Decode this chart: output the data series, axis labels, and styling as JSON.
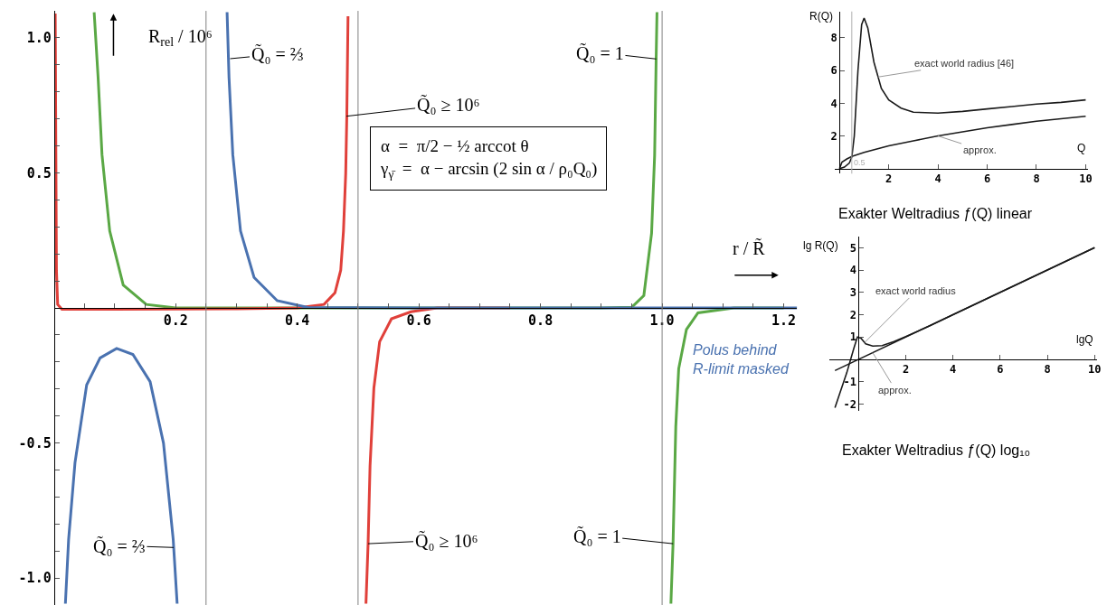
{
  "chart_data": [
    {
      "type": "line",
      "xlabel": "r / R̃",
      "ylabel": "R$_{rel}$ / 10⁶",
      "xlim": [
        0,
        1.222
      ],
      "ylim": [
        -1.1,
        1.1
      ],
      "xticks": [
        {
          "value": 0.05,
          "label": null
        },
        {
          "value": 0.1,
          "label": null
        },
        {
          "value": 0.15,
          "label": null
        },
        0.2,
        {
          "value": 0.25,
          "label": null
        },
        {
          "value": 0.3,
          "label": null
        },
        {
          "value": 0.35,
          "label": null
        },
        0.4,
        {
          "value": 0.45,
          "label": null
        },
        {
          "value": 0.5,
          "label": null
        },
        {
          "value": 0.55,
          "label": null
        },
        0.6,
        {
          "value": 0.65,
          "label": null
        },
        {
          "value": 0.7,
          "label": null
        },
        {
          "value": 0.75,
          "label": null
        },
        0.8,
        {
          "value": 0.85,
          "label": null
        },
        {
          "value": 0.9,
          "label": null
        },
        {
          "value": 0.95,
          "label": null
        },
        {
          "value": 1,
          "label": "1.0"
        },
        {
          "value": 1.05,
          "label": null
        },
        {
          "value": 1.1,
          "label": null
        },
        {
          "value": 1.15,
          "label": null
        },
        1.2
      ],
      "yticks": [
        {
          "value": -1,
          "label": "-1.0"
        },
        {
          "value": -0.9,
          "label": null
        },
        {
          "value": -0.8,
          "label": null
        },
        {
          "value": -0.7,
          "label": null
        },
        {
          "value": -0.6,
          "label": null
        },
        -0.5,
        {
          "value": -0.4,
          "label": null
        },
        {
          "value": -0.3,
          "label": null
        },
        {
          "value": -0.2,
          "label": null
        },
        {
          "value": -0.1,
          "label": null
        },
        {
          "value": 0.1,
          "label": null
        },
        {
          "value": 0.2,
          "label": null
        },
        {
          "value": 0.3,
          "label": null
        },
        {
          "value": 0.4,
          "label": null
        },
        0.5,
        {
          "value": 0.6,
          "label": null
        },
        {
          "value": 0.7,
          "label": null
        },
        {
          "value": 0.8,
          "label": null
        },
        {
          "value": 0.9,
          "label": null
        },
        {
          "value": 1,
          "label": "1.0"
        }
      ],
      "ref_lines": [
        {
          "axis": "x",
          "value": 0.25,
          "color": "#808080"
        },
        {
          "axis": "x",
          "value": 0.5,
          "color": "#808080"
        },
        {
          "axis": "x",
          "value": 1.0,
          "color": "#808080"
        }
      ],
      "series": [
        {
          "color": "#5aa845",
          "x": [
            0.066,
            0.0725,
            0.0789,
            0.0916,
            0.1138,
            0.1517,
            0.2,
            0.5,
            0.9,
            0.9505,
            0.97,
            0.9827,
            0.9877,
            0.9902,
            0.9916,
            1.0,
            1.0145,
            1.018,
            1.0225,
            1.0273,
            1.04,
            1.059,
            1.118,
            1.2
          ],
          "values": [
            1.095,
            0.853,
            0.568,
            0.285,
            0.085,
            0.013,
            0,
            0,
            0,
            0.003,
            0.046,
            0.276,
            0.565,
            0.922,
            1.095,
            null,
            -1.095,
            -0.873,
            -0.44,
            -0.225,
            -0.08,
            -0.018,
            0,
            0
          ]
        },
        {
          "color": "#e0403a",
          "x": [
            0.002,
            0.003,
            0.004,
            0.006,
            0.013,
            0.1,
            0.2,
            0.3,
            0.4,
            0.444,
            0.462,
            0.4715,
            0.476,
            0.4797,
            0.4815,
            0.4835,
            0.5,
            0.513,
            0.5165,
            0.5197,
            0.526,
            0.5355,
            0.555,
            0.587,
            0.63,
            0.75
          ],
          "values": [
            1.09,
            0.6,
            0.14,
            0.013,
            -0.005,
            -0.005,
            -0.004,
            -0.003,
            0,
            0.013,
            0.056,
            0.14,
            0.285,
            0.498,
            0.71,
            1.08,
            null,
            -1.095,
            -0.873,
            -0.585,
            -0.297,
            -0.125,
            -0.04,
            -0.014,
            0,
            0
          ]
        },
        {
          "color": "#4a72b0",
          "x": [
            0.0187,
            0.024,
            0.0345,
            0.0537,
            0.0758,
            0.103,
            0.1297,
            0.158,
            0.18,
            0.196,
            0.2025,
            0.25,
            0.2846,
            0.2878,
            0.294,
            0.3067,
            0.329,
            0.367,
            0.4175,
            0.6,
            0.8,
            1.0,
            1.222
          ],
          "values": [
            -1.095,
            -0.857,
            -0.573,
            -0.285,
            -0.185,
            -0.15,
            -0.172,
            -0.273,
            -0.5,
            -0.857,
            -1.095,
            null,
            1.095,
            0.853,
            0.568,
            0.285,
            0.113,
            0.027,
            0.002,
            0,
            0,
            0,
            0
          ]
        }
      ],
      "annotations": [
        {
          "text": "Q̃₀ = ⅔",
          "x": 0.2897,
          "y": 0.923
        },
        {
          "text": "Q̃₀ ≥ 10⁶",
          "x": 0.481,
          "y": 0.71
        },
        {
          "text": "Q̃₀ = 1",
          "x": 0.9902,
          "y": 0.922
        },
        {
          "text": "Q̃₀ = ⅔",
          "x": 0.1966,
          "y": -0.887
        },
        {
          "text": "Q̃₀ ≥ 10⁶",
          "x": 0.5165,
          "y": -0.873
        },
        {
          "text": "Q̃₀ = 1",
          "x": 1.018,
          "y": -0.873
        },
        "α  =  π/2 − ½ arccot θ\nγ$_{γ̄}$  =  α − arcsin (2 sin α / ρ₀Q₀)",
        "Polus behind\nR-limit masked"
      ]
    },
    {
      "type": "line",
      "title": "Exakter Weltradius ƒ(Q) linear",
      "xlabel": "Q",
      "ylabel": "R(Q)",
      "xlim": [
        -0.2,
        10.1
      ],
      "ylim": [
        -0.3,
        9.6
      ],
      "xticks": [
        2,
        4,
        6,
        8,
        10
      ],
      "yticks": [
        2,
        4,
        6,
        8
      ],
      "ref_lines": [
        {
          "axis": "x",
          "value": 0.5,
          "label": "0.5",
          "color": "#b0b0b0"
        }
      ],
      "series": [
        {
          "color": "#1a1a1a",
          "x": [
            0,
            0.2,
            0.4,
            0.5,
            0.6,
            0.75,
            0.9,
            1.0,
            1.15,
            1.4,
            1.7,
            2,
            2.5,
            3,
            4,
            5,
            6,
            7,
            8,
            9,
            10
          ],
          "values": [
            0,
            0.1,
            0.35,
            0.7,
            2,
            6,
            8.8,
            9.2,
            8.6,
            6.5,
            4.9,
            4.2,
            3.7,
            3.45,
            3.4,
            3.5,
            3.65,
            3.8,
            3.95,
            4.05,
            4.2
          ]
        },
        {
          "color": "#1a1a1a",
          "x": [
            0,
            0.1,
            0.3,
            0.5,
            1,
            2,
            3,
            4,
            5,
            6,
            7,
            8,
            9,
            10
          ],
          "values": [
            0,
            0.4,
            0.6,
            0.75,
            1.0,
            1.4,
            1.7,
            2.0,
            2.25,
            2.5,
            2.7,
            2.9,
            3.05,
            3.2
          ]
        }
      ],
      "annotations": [
        {
          "text": "exact world radius [46]",
          "x": 1.56,
          "y": 5.6
        },
        {
          "text": "approx.",
          "x": 4.0,
          "y": 2.0
        }
      ]
    },
    {
      "type": "line",
      "title": "Exakter Weltradius ƒ(Q) log₁₀",
      "xlabel": "lgQ",
      "ylabel": "lg R(Q)",
      "xlim": [
        -1.25,
        10.1
      ],
      "ylim": [
        -2.3,
        5.5
      ],
      "xticks": [
        2,
        4,
        6,
        8,
        10
      ],
      "yticks": [
        -2,
        -1,
        1,
        2,
        3,
        4,
        5
      ],
      "series": [
        {
          "color": "#1a1a1a",
          "x": [
            -1,
            -0.5,
            -0.2,
            -0.05,
            0.1,
            0.3,
            0.6,
            1.0,
            1.5,
            2,
            3,
            4,
            6,
            8,
            10
          ],
          "values": [
            -2.16,
            -0.6,
            0.5,
            1.0,
            0.95,
            0.7,
            0.6,
            0.62,
            0.8,
            1.02,
            1.5,
            2.0,
            3.0,
            4.0,
            5.0
          ]
        },
        {
          "color": "#1a1a1a",
          "x": [
            -1,
            10
          ],
          "values": [
            -0.5,
            5
          ]
        }
      ],
      "annotations": [
        {
          "text": "exact world radius",
          "x": 0.25,
          "y": 0.75
        },
        {
          "text": "approx.",
          "x": 0.6,
          "y": 0.3
        }
      ]
    }
  ]
}
